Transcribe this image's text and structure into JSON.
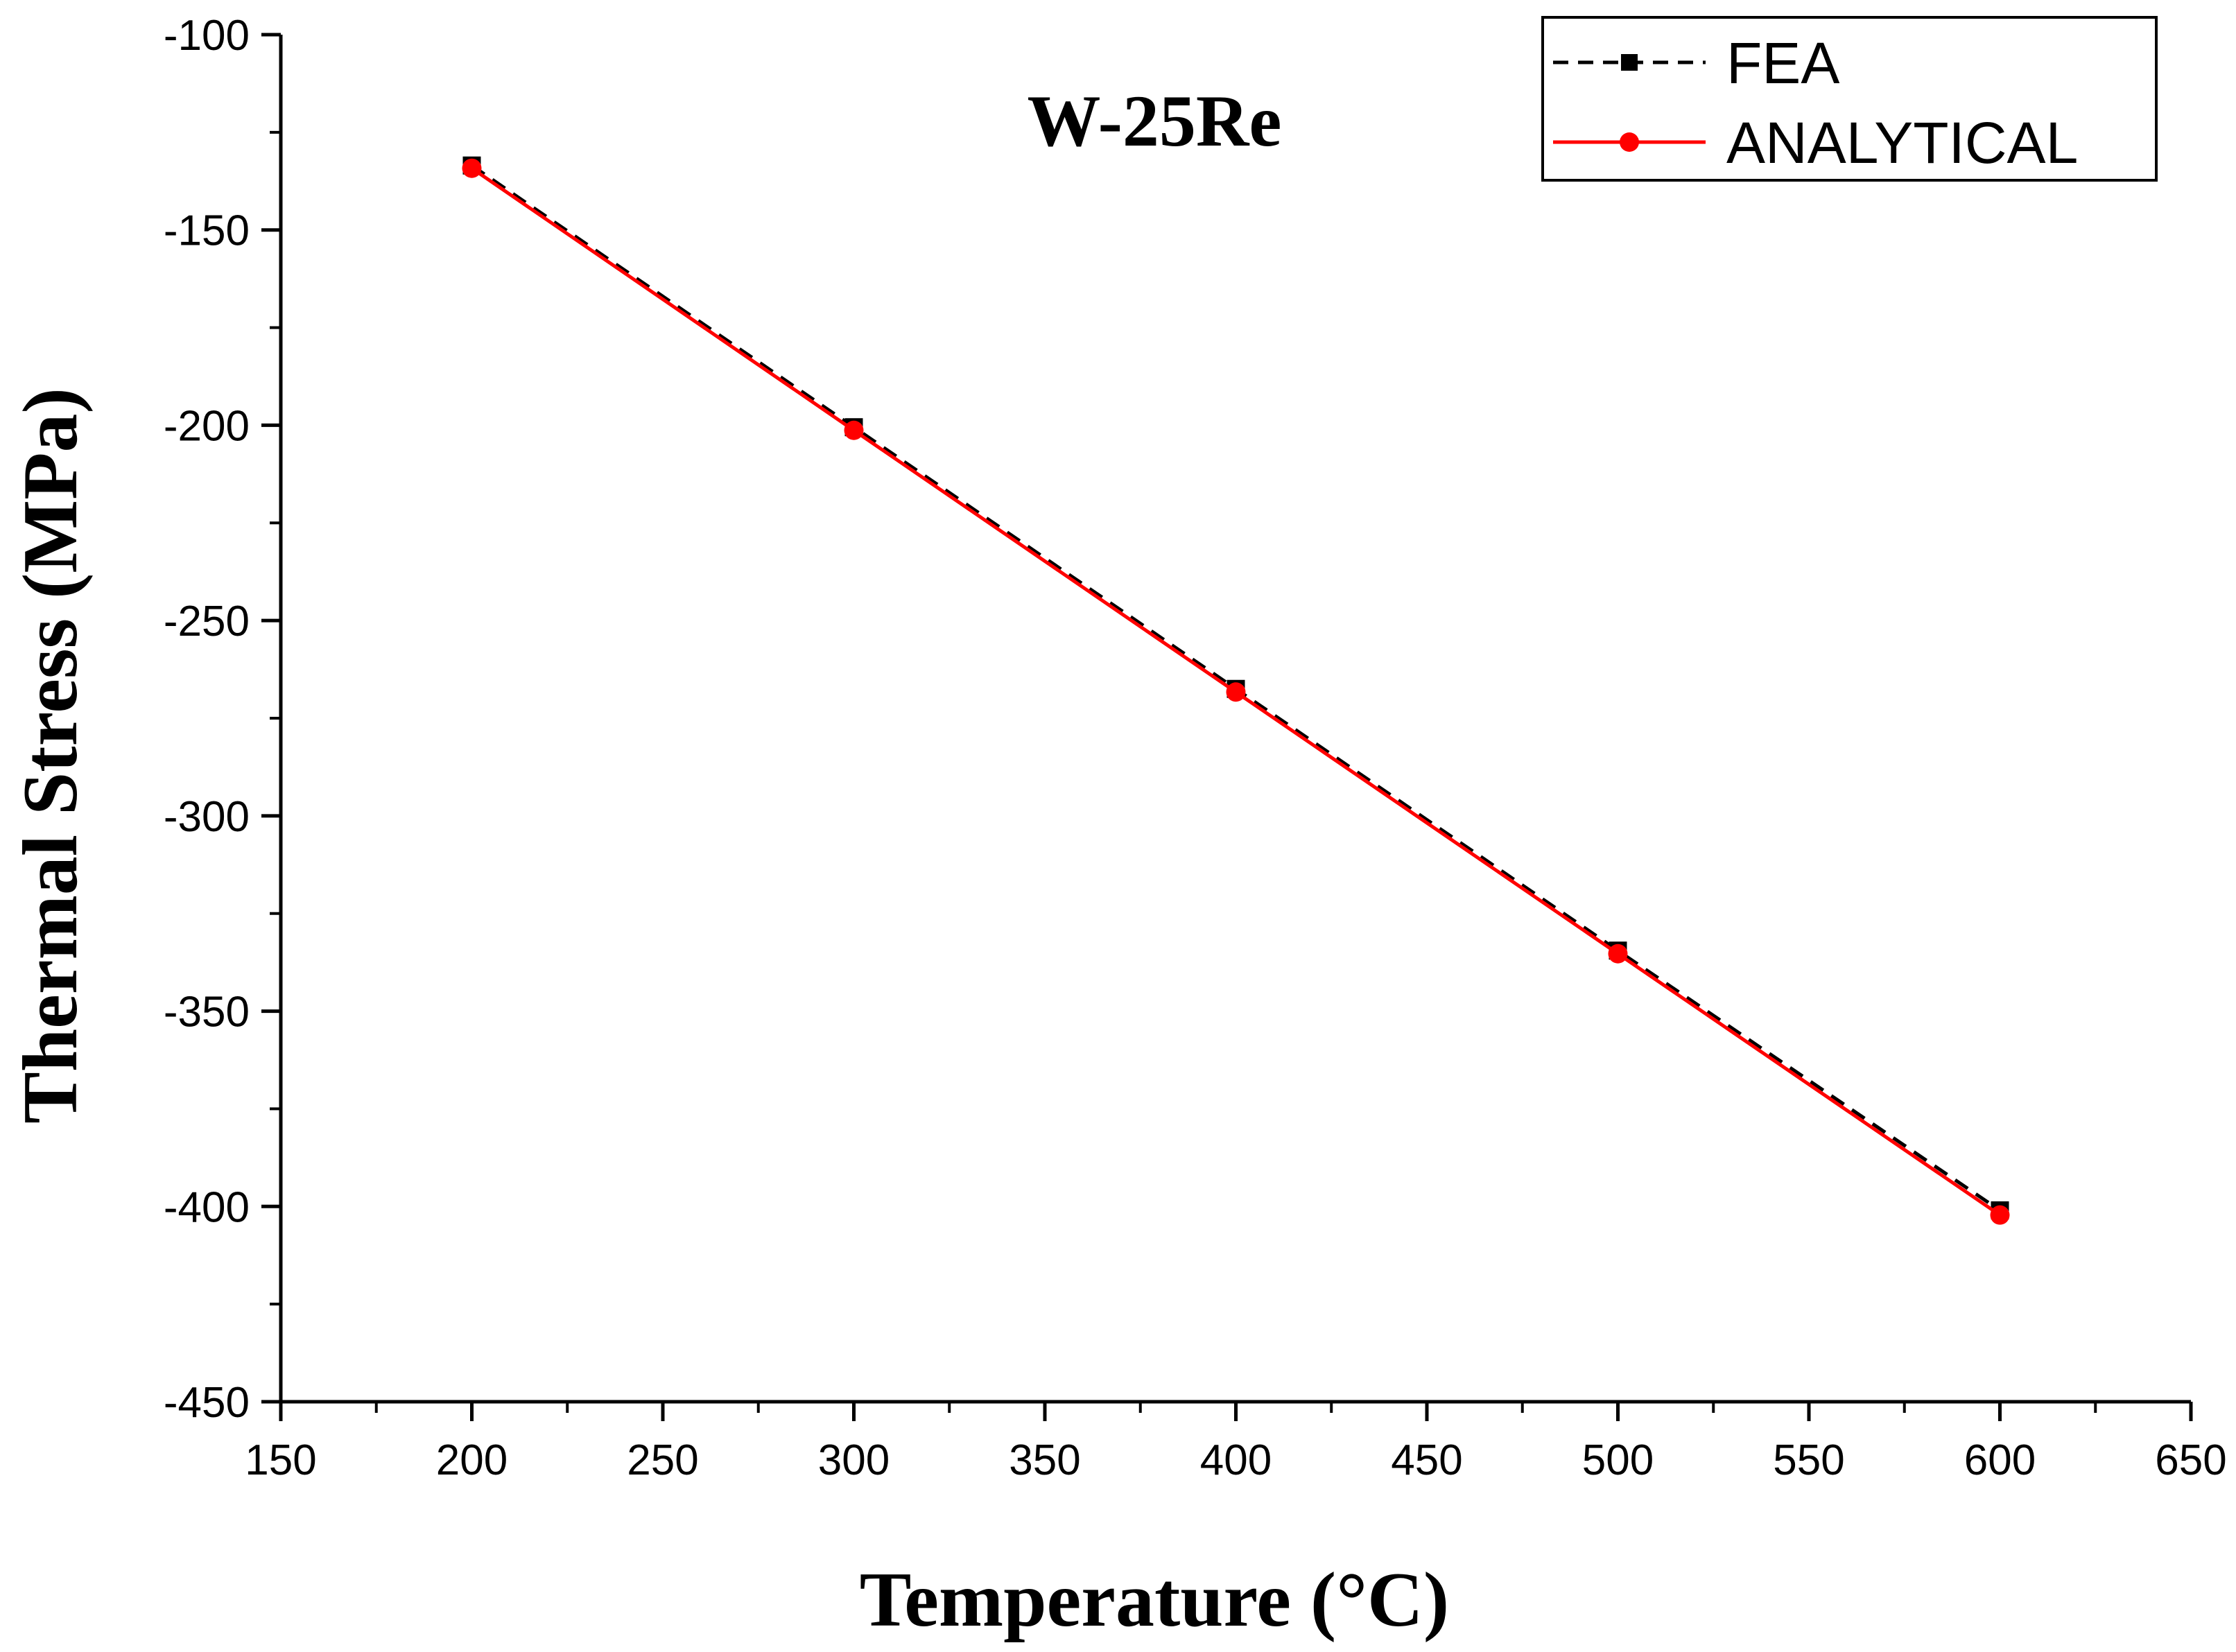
{
  "chart_data": {
    "type": "line",
    "title": "W-25Re",
    "xlabel": "Temperature (°C)",
    "ylabel": "Thermal Stress (MPa)",
    "xlim": [
      150,
      650
    ],
    "ylim": [
      -450,
      -100
    ],
    "x_ticks": [
      150,
      200,
      250,
      300,
      350,
      400,
      450,
      500,
      550,
      600,
      650
    ],
    "y_ticks": [
      -100,
      -150,
      -200,
      -250,
      -300,
      -350,
      -400,
      -450
    ],
    "x": [
      200,
      300,
      400,
      500,
      600
    ],
    "series": [
      {
        "name": "FEA",
        "values": [
          -133.5,
          -200.5,
          -267.5,
          -334.5,
          -401
        ],
        "color": "#000000",
        "line_style": "dashed",
        "marker": "square"
      },
      {
        "name": "ANALYTICAL",
        "values": [
          -134.2,
          -201.3,
          -268.3,
          -335.3,
          -402.2
        ],
        "color": "#ff0000",
        "line_style": "solid",
        "marker": "circle"
      }
    ],
    "grid": false,
    "legend_position": "top-right"
  }
}
